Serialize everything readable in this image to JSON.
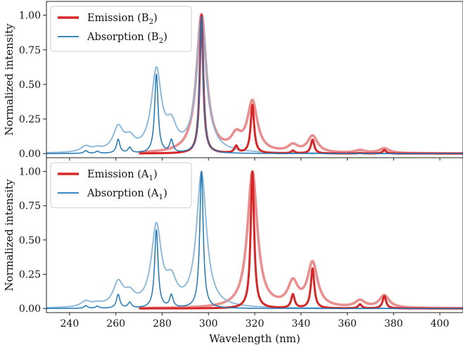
{
  "figure": {
    "xlabel": "Wavelength (nm)",
    "ylabel": "Normalized intensity"
  },
  "colors": {
    "emission": "#d62728",
    "emission_broad": "#e8898a",
    "absorption": "#1f77b4",
    "absorption_broad": "#8ab6d8"
  },
  "chart_data": [
    {
      "type": "line",
      "panel": "top",
      "xlim": [
        230,
        410
      ],
      "ylim": [
        -0.03,
        1.1
      ],
      "xticks": [
        240,
        260,
        280,
        300,
        320,
        340,
        360,
        380,
        400
      ],
      "yticks": [
        0.0,
        0.25,
        0.5,
        0.75,
        1.0
      ],
      "ytick_labels": [
        "0.00",
        "0.25",
        "0.50",
        "0.75",
        "1.00"
      ],
      "ylabel": "Normalized intensity",
      "legend": {
        "placement": "top-left"
      },
      "series": [
        {
          "name": "Emission (B",
          "name_sub": "2",
          "name_tail": ")",
          "role": "emission",
          "x_start": 270,
          "sharp_peaks": [
            [
              297,
              1.0
            ],
            [
              312,
              0.05
            ],
            [
              319,
              0.35
            ],
            [
              336.5,
              0.02
            ],
            [
              345,
              0.1
            ],
            [
              365.5,
              0.005
            ],
            [
              376,
              0.025
            ]
          ],
          "broad_peaks": [
            [
              297,
              1.0
            ],
            [
              312,
              0.1
            ],
            [
              319,
              0.36
            ],
            [
              336.5,
              0.05
            ],
            [
              345,
              0.12
            ],
            [
              365.5,
              0.02
            ],
            [
              376,
              0.035
            ]
          ]
        },
        {
          "name": "Absorption (B",
          "name_sub": "2",
          "name_tail": ")",
          "role": "absorption",
          "x_start": 230,
          "sharp_peaks": [
            [
              247,
              0.02
            ],
            [
              252,
              0.015
            ],
            [
              261,
              0.1
            ],
            [
              266,
              0.04
            ],
            [
              277.5,
              0.57
            ],
            [
              284,
              0.09
            ],
            [
              297,
              0.99
            ]
          ],
          "broad_peaks": [
            [
              247,
              0.04
            ],
            [
              252,
              0.02
            ],
            [
              261,
              0.17
            ],
            [
              266,
              0.08
            ],
            [
              277.5,
              0.58
            ],
            [
              284,
              0.16
            ],
            [
              297,
              0.97
            ]
          ]
        }
      ]
    },
    {
      "type": "line",
      "panel": "bottom",
      "xlim": [
        230,
        410
      ],
      "ylim": [
        -0.03,
        1.1
      ],
      "xticks": [
        240,
        260,
        280,
        300,
        320,
        340,
        360,
        380,
        400
      ],
      "xtick_labels": [
        "240",
        "260",
        "280",
        "300",
        "320",
        "340",
        "360",
        "380",
        "400"
      ],
      "yticks": [
        0.0,
        0.25,
        0.5,
        0.75,
        1.0
      ],
      "ytick_labels": [
        "0.00",
        "0.25",
        "0.50",
        "0.75",
        "1.00"
      ],
      "xlabel": "Wavelength (nm)",
      "ylabel": "Normalized intensity",
      "legend": {
        "placement": "top-left"
      },
      "series": [
        {
          "name": "Emission (A",
          "name_sub": "1",
          "name_tail": ")",
          "role": "emission",
          "x_start": 270,
          "sharp_peaks": [
            [
              319,
              1.0
            ],
            [
              336.5,
              0.1
            ],
            [
              345,
              0.29
            ],
            [
              365.5,
              0.03
            ],
            [
              376,
              0.09
            ]
          ],
          "broad_peaks": [
            [
              319,
              0.99
            ],
            [
              336.5,
              0.17
            ],
            [
              345,
              0.32
            ],
            [
              365.5,
              0.05
            ],
            [
              376,
              0.09
            ]
          ]
        },
        {
          "name": "Absorption (A",
          "name_sub": "1",
          "name_tail": ")",
          "role": "absorption",
          "x_start": 230,
          "sharp_peaks": [
            [
              247,
              0.02
            ],
            [
              252,
              0.015
            ],
            [
              261,
              0.1
            ],
            [
              266,
              0.04
            ],
            [
              277.5,
              0.57
            ],
            [
              284,
              0.09
            ],
            [
              297,
              1.0
            ]
          ],
          "broad_peaks": [
            [
              247,
              0.04
            ],
            [
              252,
              0.02
            ],
            [
              261,
              0.17
            ],
            [
              266,
              0.08
            ],
            [
              277.5,
              0.58
            ],
            [
              284,
              0.16
            ],
            [
              297,
              0.98
            ]
          ]
        }
      ]
    }
  ]
}
